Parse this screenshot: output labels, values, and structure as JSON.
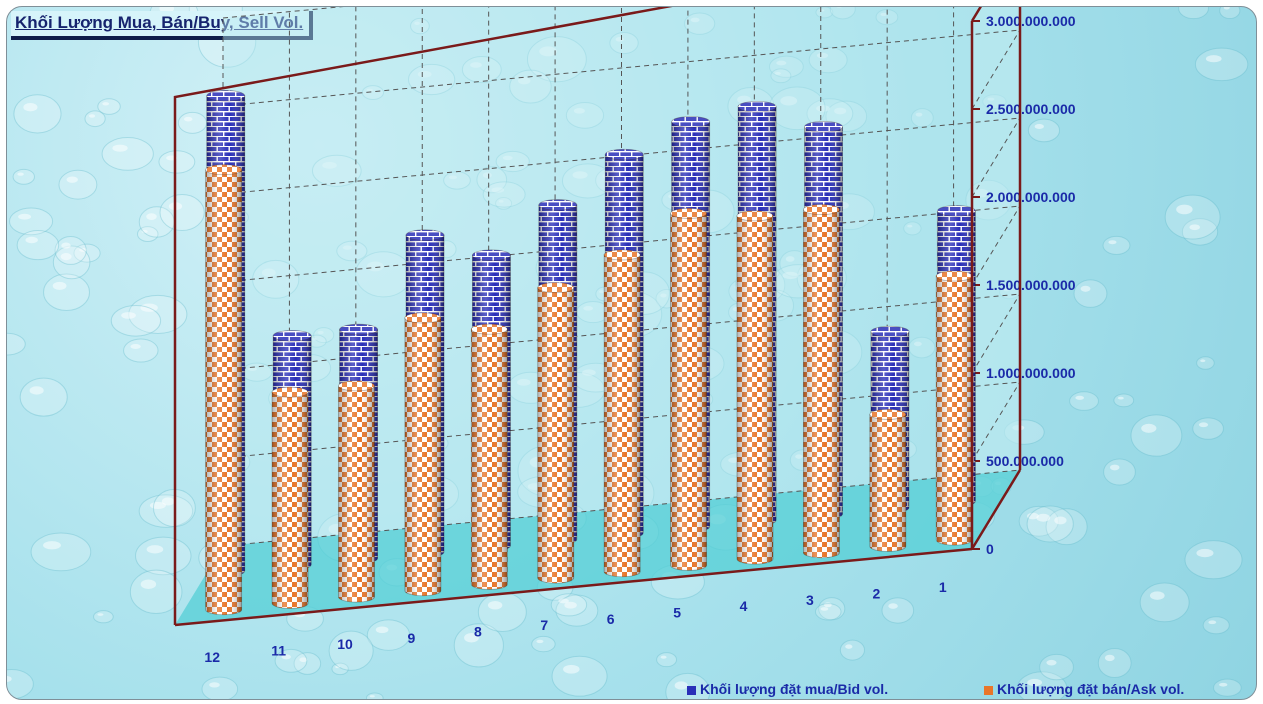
{
  "chart_data": {
    "type": "bar",
    "title": "Khối Lượng Mua, Bán/Buy, Sell Vol.",
    "categories": [
      "12",
      "11",
      "10",
      "9",
      "8",
      "7",
      "6",
      "5",
      "4",
      "3",
      "2",
      "1"
    ],
    "series": [
      {
        "name": "Khối lượng đặt mua/Bid vol.",
        "values": [
          2700000000,
          1300000000,
          1300000000,
          1800000000,
          1650000000,
          1900000000,
          2150000000,
          2300000000,
          2350000000,
          2200000000,
          1000000000,
          1650000000
        ],
        "color": "#2a2fb8"
      },
      {
        "name": "Khối lượng đặt bán/Ask vol.",
        "values": [
          2500000000,
          1200000000,
          1200000000,
          1550000000,
          1450000000,
          1650000000,
          1800000000,
          2000000000,
          1950000000,
          1950000000,
          750000000,
          1500000000
        ],
        "color": "#e8762a"
      }
    ],
    "y_tick_labels": [
      "0",
      "500.000.000",
      "1.000.000.000",
      "1.500.000.000",
      "2.000.000.000",
      "2.500.000.000",
      "3.000.000.000"
    ],
    "ylim": [
      0,
      3000000000
    ],
    "y_axis_side": "right",
    "grid": true,
    "projection": "3d",
    "legend_position": "bottom-right"
  },
  "colors": {
    "frame": "#7a1a1a",
    "floor": "#54cfd6",
    "bid_mortar": "#ffffff",
    "ask_light": "#ffffff",
    "tick_text": "#1a2aa8"
  }
}
